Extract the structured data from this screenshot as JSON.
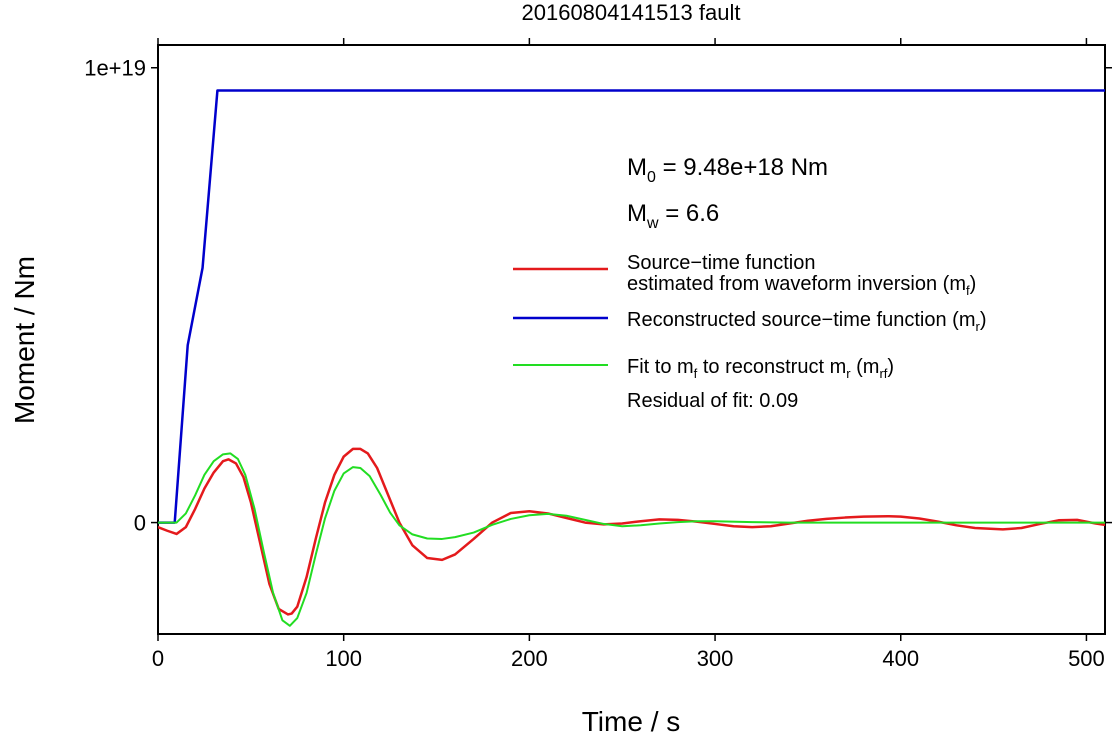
{
  "chart_data": {
    "type": "line",
    "title": "20160804141513 fault",
    "xlabel": "Time / s",
    "ylabel": "Moment / Nm",
    "xlim": [
      0,
      510
    ],
    "ylim": [
      -2.45e+18,
      1.05e+19
    ],
    "grid": false,
    "x_ticks": [
      {
        "value": 0,
        "label": "0"
      },
      {
        "value": 100,
        "label": "100"
      },
      {
        "value": 200,
        "label": "200"
      },
      {
        "value": 300,
        "label": "300"
      },
      {
        "value": 400,
        "label": "400"
      },
      {
        "value": 500,
        "label": "500"
      }
    ],
    "y_ticks": [
      {
        "value": 0,
        "label": "0"
      },
      {
        "value": 1e+19,
        "label": "1e+19"
      }
    ],
    "annotations": {
      "m0": {
        "main": "M",
        "sub": "0",
        "rest": " = 9.48e+18 Nm"
      },
      "mw": {
        "main": "M",
        "sub": "w",
        "rest": " = 6.6"
      },
      "residual": "Residual of fit: 0.09"
    },
    "series": [
      {
        "key": "mf",
        "color": "#e41a1c",
        "legend": [
          {
            "text": "Source−time function"
          },
          {
            "text": "estimated from waveform inversion (m",
            "sub": "f",
            "after": ")"
          }
        ],
        "x": [
          0,
          5,
          10,
          15,
          20,
          25,
          30,
          35,
          38,
          42,
          46,
          50,
          55,
          60,
          65,
          70,
          72,
          75,
          80,
          85,
          90,
          95,
          100,
          105,
          109,
          113,
          118,
          123,
          130,
          137,
          145,
          153,
          160,
          170,
          180,
          190,
          200,
          210,
          220,
          230,
          240,
          250,
          260,
          270,
          280,
          290,
          300,
          310,
          320,
          330,
          340,
          350,
          360,
          370,
          380,
          393,
          400,
          410,
          420,
          430,
          440,
          455,
          465,
          475,
          485,
          495,
          505,
          510
        ],
        "values": [
          -1e+17,
          -1.8e+17,
          -2.5e+17,
          -1e+17,
          3e+17,
          7.5e+17,
          1.1e+18,
          1.35e+18,
          1.39e+18,
          1.3e+18,
          1e+18,
          4.5e+17,
          -4.5e+17,
          -1.35e+18,
          -1.9e+18,
          -2.02e+18,
          -2e+18,
          -1.85e+18,
          -1.2e+18,
          -3.5e+17,
          4.5e+17,
          1.05e+18,
          1.45e+18,
          1.62e+18,
          1.62e+18,
          1.52e+18,
          1.2e+18,
          7e+17,
          0,
          -5e+17,
          -7.8e+17,
          -8.2e+17,
          -7e+17,
          -3.6e+17,
          0,
          2.1e+17,
          2.5e+17,
          2e+17,
          1e+17,
          0,
          -4e+16,
          -2e+16,
          3e+16,
          7e+16,
          6e+16,
          2e+16,
          -3e+16,
          -8e+16,
          -1e+17,
          -8e+16,
          -2e+16,
          4e+16,
          8e+16,
          1.1e+17,
          1.3e+17,
          1.4e+17,
          1.3e+17,
          9e+16,
          2e+16,
          -6e+16,
          -1.2e+17,
          -1.5e+17,
          -1.2e+17,
          -3e+16,
          5e+16,
          6e+16,
          -2e+16,
          -5e+16
        ]
      },
      {
        "key": "mr",
        "color": "#0000cc",
        "legend": [
          {
            "text": "Reconstructed source−time function (m",
            "sub": "r",
            "after": ")"
          }
        ],
        "x": [
          0,
          9,
          16,
          24,
          32,
          510
        ],
        "values": [
          0,
          0,
          3.9e+18,
          5.6e+18,
          9.5e+18,
          9.5e+18
        ]
      },
      {
        "key": "mrf",
        "color": "#22dd22",
        "legend": [
          {
            "text": "Fit to m",
            "sub": "f",
            "after": " to reconstruct m"
          },
          {
            "text": "r",
            "isSub": true
          },
          {
            "text": " (m",
            "sub": "rf",
            "after": ")"
          }
        ],
        "x": [
          0,
          10,
          15,
          20,
          25,
          30,
          35,
          39,
          43,
          47,
          52,
          57,
          62,
          67,
          71,
          75,
          80,
          85,
          90,
          95,
          100,
          105,
          109,
          114,
          120,
          125,
          130,
          137,
          145,
          153,
          160,
          170,
          180,
          190,
          200,
          210,
          220,
          230,
          240,
          250,
          260,
          270,
          280,
          290,
          300,
          320,
          340,
          360,
          380,
          400,
          420,
          440,
          460,
          480,
          500,
          510
        ],
        "values": [
          0,
          0,
          2e+17,
          6e+17,
          1.05e+18,
          1.35e+18,
          1.5e+18,
          1.52e+18,
          1.4e+18,
          1.05e+18,
          3e+17,
          -6.5e+17,
          -1.55e+18,
          -2.15e+18,
          -2.27e+18,
          -2.1e+18,
          -1.55e+18,
          -7e+17,
          1e+17,
          7e+17,
          1.08e+18,
          1.22e+18,
          1.2e+18,
          1.02e+18,
          6e+17,
          2.2e+17,
          -6e+16,
          -2.6e+17,
          -3.5e+17,
          -3.6e+17,
          -3.2e+17,
          -2.2e+17,
          -5e+16,
          8e+16,
          1.6e+17,
          1.9e+17,
          1.5e+17,
          6e+16,
          -3e+16,
          -8e+16,
          -6e+16,
          -2e+16,
          1e+16,
          3e+16,
          3e+16,
          1e+16,
          0,
          0,
          0,
          0,
          0,
          0,
          0,
          0,
          0,
          0
        ]
      }
    ]
  }
}
